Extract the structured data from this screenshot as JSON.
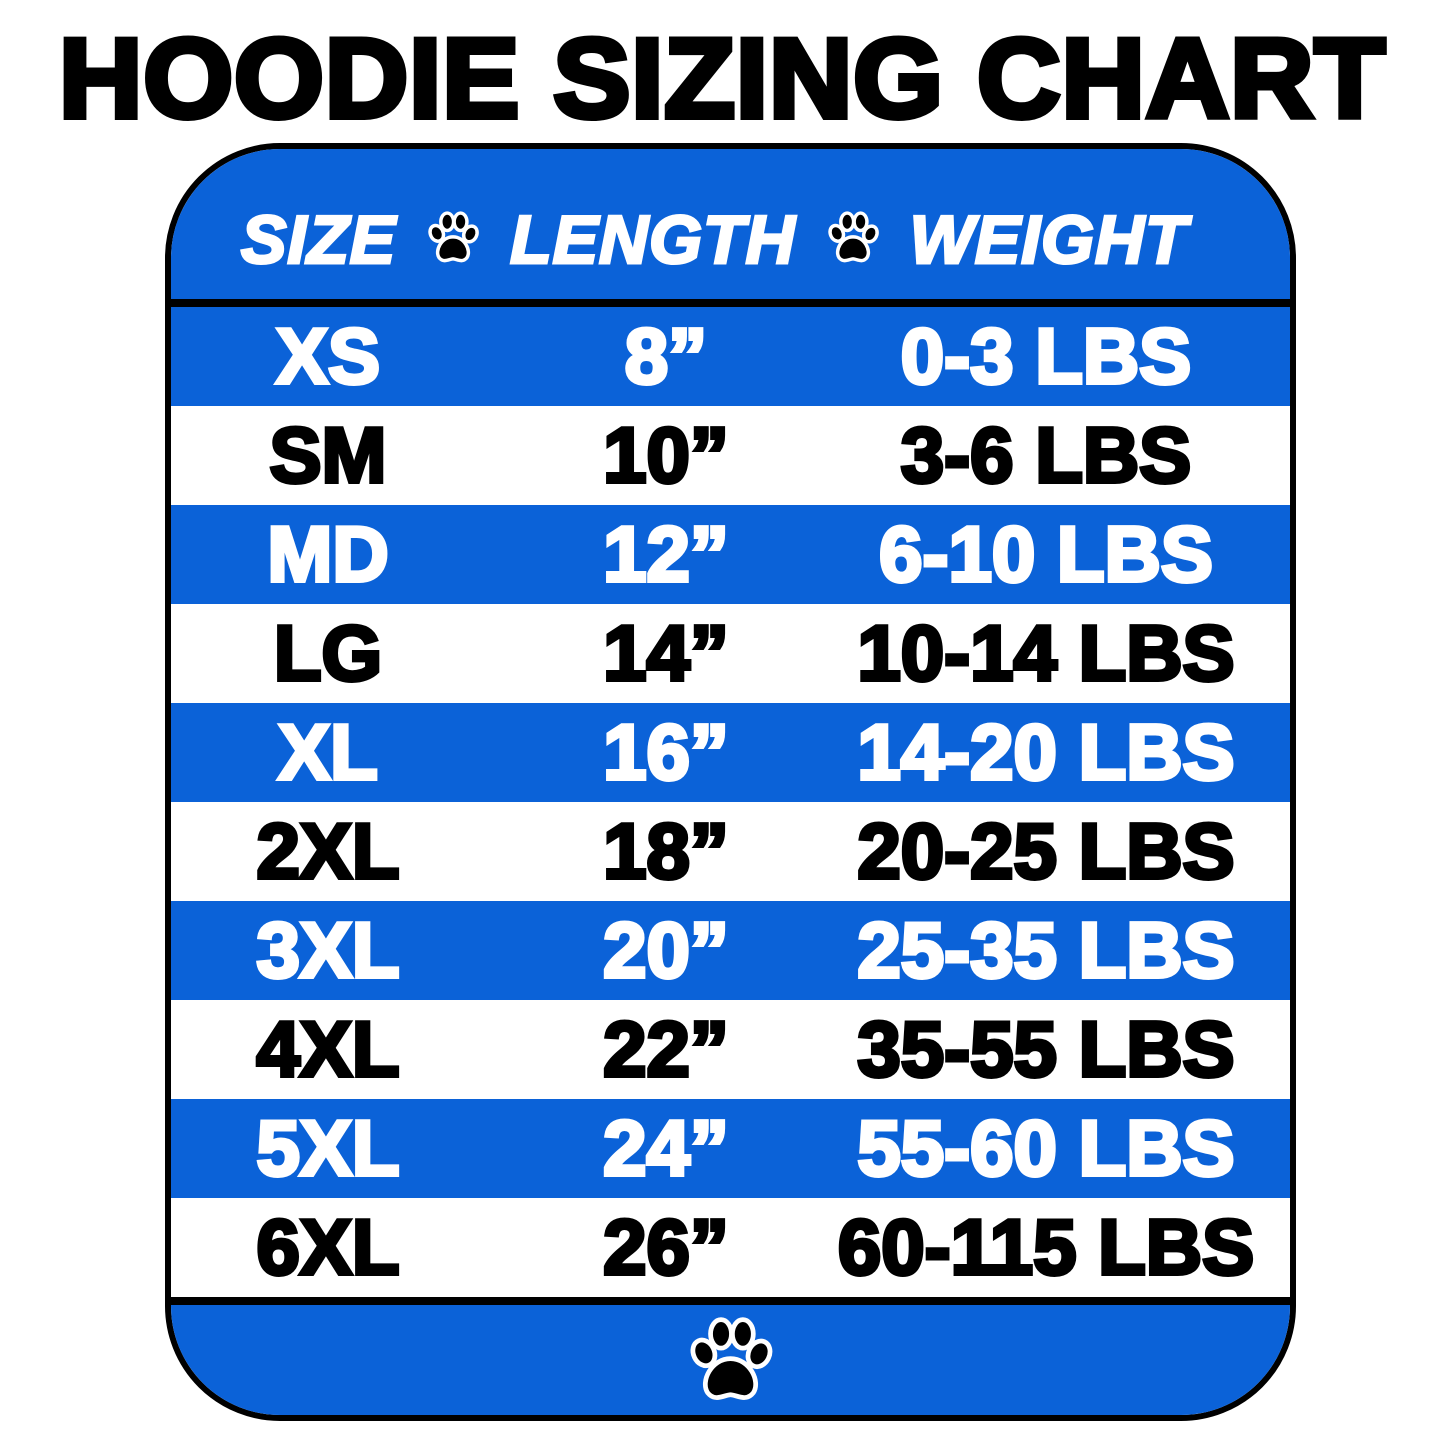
{
  "title": "HOODIE SIZING CHART",
  "colors": {
    "blue": "#0b62d8",
    "white": "#ffffff",
    "black": "#000000"
  },
  "header": {
    "size": "SIZE",
    "length": "LENGTH",
    "weight": "WEIGHT",
    "separator_icon": "paw-print-icon"
  },
  "rows": [
    {
      "size": "XS",
      "length": "8”",
      "weight": "0-3 LBS"
    },
    {
      "size": "SM",
      "length": "10”",
      "weight": "3-6 LBS"
    },
    {
      "size": "MD",
      "length": "12”",
      "weight": "6-10 LBS"
    },
    {
      "size": "LG",
      "length": "14”",
      "weight": "10-14 LBS"
    },
    {
      "size": "XL",
      "length": "16”",
      "weight": "14-20 LBS"
    },
    {
      "size": "2XL",
      "length": "18”",
      "weight": "20-25 LBS"
    },
    {
      "size": "3XL",
      "length": "20”",
      "weight": "25-35 LBS"
    },
    {
      "size": "4XL",
      "length": "22”",
      "weight": "35-55 LBS"
    },
    {
      "size": "5XL",
      "length": "24”",
      "weight": "55-60 LBS"
    },
    {
      "size": "6XL",
      "length": "26”",
      "weight": "60-115 LBS"
    }
  ],
  "footer": {
    "icon": "paw-print-icon"
  }
}
